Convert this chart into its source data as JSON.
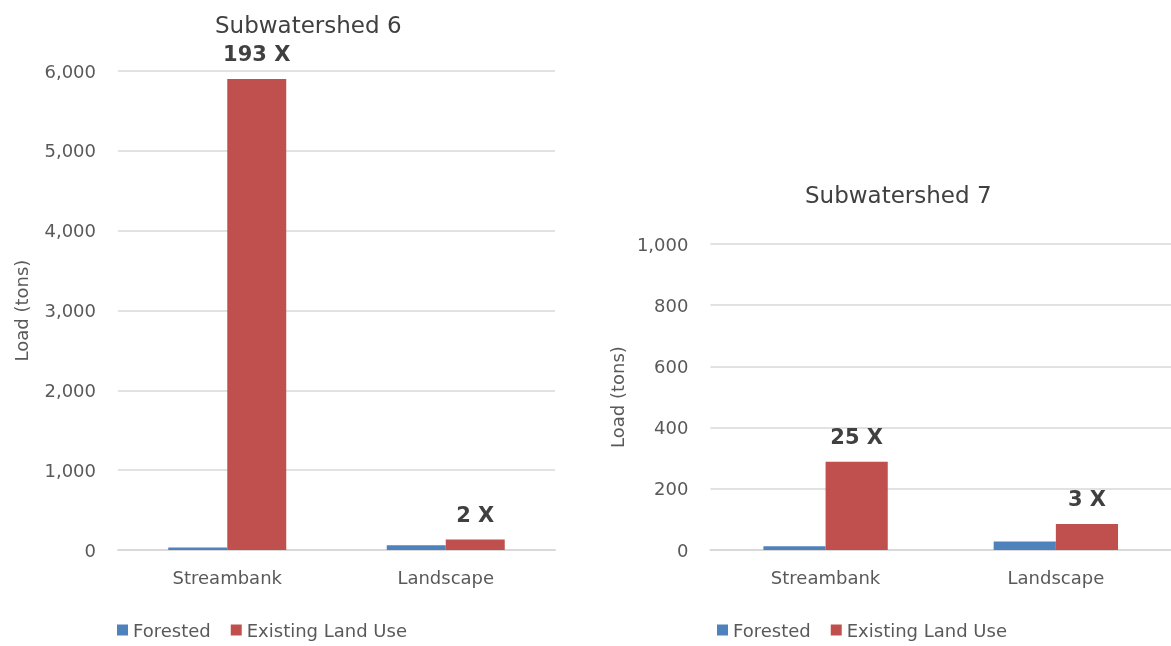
{
  "chart_data": [
    {
      "type": "bar",
      "title": "Subwatershed 6",
      "ylabel": "Load (tons)",
      "categories": [
        "Streambank",
        "Landscape"
      ],
      "series": [
        {
          "name": "Forested",
          "color": "#4f81bd",
          "values": [
            30,
            60
          ]
        },
        {
          "name": "Existing Land Use",
          "color": "#c0504d",
          "values": [
            5900,
            130
          ]
        }
      ],
      "annotations": [
        {
          "text": "193 X",
          "x": "Streambank",
          "y": 5900
        },
        {
          "text": "2 X",
          "x": "Landscape",
          "y": 130
        }
      ],
      "ylim": [
        0,
        6000
      ],
      "yticks": [
        {
          "value": 0,
          "label": "0"
        },
        {
          "value": 1000,
          "label": "1,000"
        },
        {
          "value": 2000,
          "label": "2,000"
        },
        {
          "value": 3000,
          "label": "3,000"
        },
        {
          "value": 4000,
          "label": "4,000"
        },
        {
          "value": 5000,
          "label": "5,000"
        },
        {
          "value": 6000,
          "label": "6,000"
        }
      ],
      "grid": "y",
      "legend": "bottom left"
    },
    {
      "type": "bar",
      "title": "Subwatershed 7",
      "ylabel": "Load (tons)",
      "categories": [
        "Streambank",
        "Landscape"
      ],
      "series": [
        {
          "name": "Forested",
          "color": "#4f81bd",
          "values": [
            12,
            28
          ]
        },
        {
          "name": "Existing Land Use",
          "color": "#c0504d",
          "values": [
            288,
            85
          ]
        }
      ],
      "annotations": [
        {
          "text": "25 X",
          "x": "Streambank",
          "y": 288
        },
        {
          "text": "3 X",
          "x": "Landscape",
          "y": 85
        }
      ],
      "ylim": [
        0,
        1000
      ],
      "yticks": [
        {
          "value": 0,
          "label": "0"
        },
        {
          "value": 200,
          "label": "200"
        },
        {
          "value": 400,
          "label": "400"
        },
        {
          "value": 600,
          "label": "600"
        },
        {
          "value": 800,
          "label": "800"
        },
        {
          "value": 1000,
          "label": "1,000"
        }
      ],
      "grid": "y",
      "legend": "bottom left"
    }
  ]
}
